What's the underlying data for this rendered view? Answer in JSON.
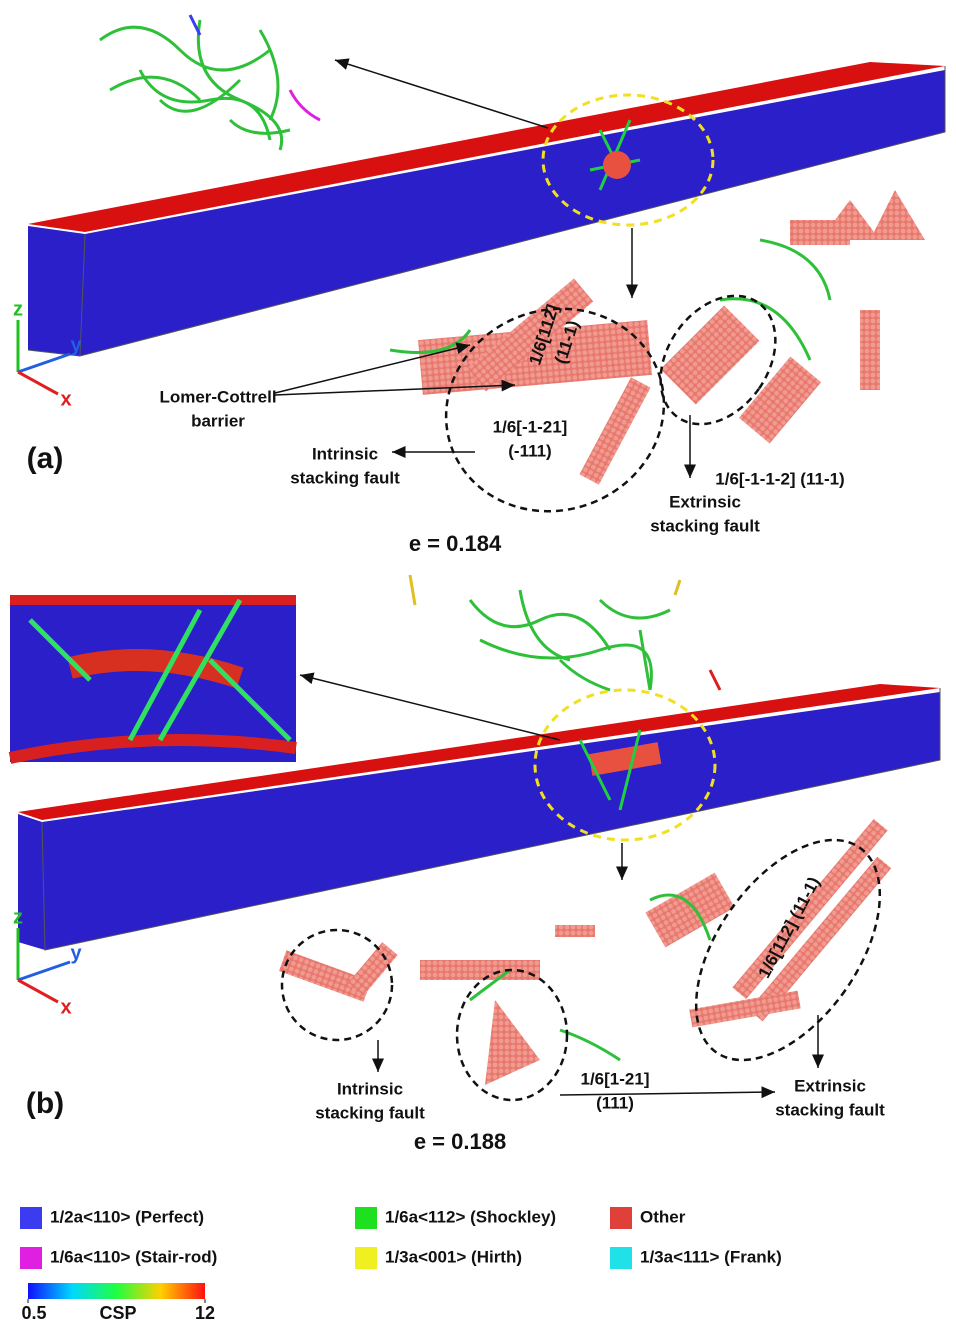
{
  "panels": [
    {
      "label": "(a)",
      "strain": "e = 0.184",
      "axes": {
        "z": "z",
        "y": "y",
        "x": "x"
      },
      "annotations": [
        {
          "lines": [
            "Lomer-Cottrell",
            "barrier"
          ]
        },
        {
          "lines": [
            "1/6[112]",
            "(11-1)"
          ]
        },
        {
          "lines": [
            "1/6[-1-21]",
            "(-111)"
          ]
        },
        {
          "lines": [
            "Intrinsic",
            "stacking fault"
          ]
        },
        {
          "lines": [
            "1/6[-1-1-2] (11-1)"
          ]
        },
        {
          "lines": [
            "Extrinsic",
            "stacking fault"
          ]
        }
      ]
    },
    {
      "label": "(b)",
      "strain": "e = 0.188",
      "axes": {
        "z": "z",
        "y": "y",
        "x": "x"
      },
      "annotations": [
        {
          "lines": [
            "Intrinsic",
            "stacking fault"
          ]
        },
        {
          "lines": [
            "1/6[1-21]",
            "(111)"
          ]
        },
        {
          "lines": [
            "Extrinsic",
            "stacking fault"
          ]
        },
        {
          "lines": [
            "1/6[112] (11-1)"
          ]
        }
      ]
    }
  ],
  "legend": [
    {
      "name": "1/2a<110> (Perfect)",
      "color": "#3b3bf0"
    },
    {
      "name": "1/6a<112> (Shockley)",
      "color": "#1fe01f"
    },
    {
      "name": "Other",
      "color": "#e0403a"
    },
    {
      "name": "1/6a<110> (Stair-rod)",
      "color": "#e020e0"
    },
    {
      "name": "1/3a<001> (Hirth)",
      "color": "#f0f020"
    },
    {
      "name": "1/3a<111> (Frank)",
      "color": "#20e0e8"
    }
  ],
  "colorbar": {
    "min": 0.5,
    "max": 12,
    "label": "CSP"
  }
}
